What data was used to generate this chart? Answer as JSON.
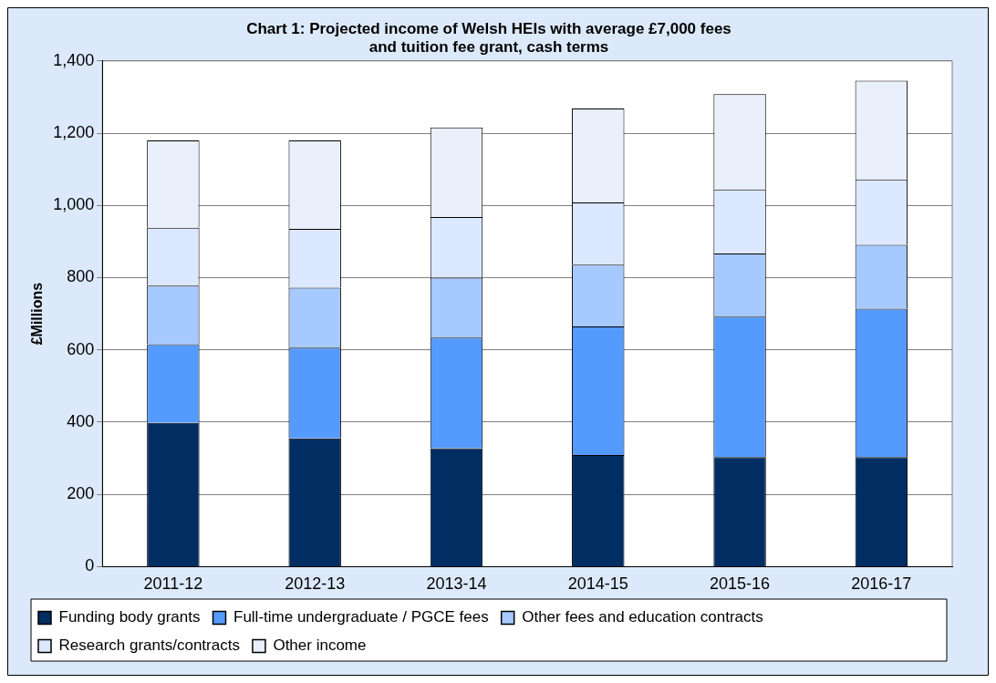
{
  "chart_data": {
    "type": "bar",
    "title": "Chart 1: Projected income of Welsh HEIs with average £7,000 fees\nand tuition fee grant, cash terms",
    "categories": [
      "2011-12",
      "2012-13",
      "2013-14",
      "2014-15",
      "2015-16",
      "2016-17"
    ],
    "stacked": true,
    "ylabel": "£Millions",
    "series": [
      {
        "name": "Funding body grants",
        "color": "#002d62",
        "values": [
          398,
          355,
          328,
          309,
          303,
          303
        ]
      },
      {
        "name": "Full-time undergraduate / PGCE fees",
        "color": "#559bff",
        "values": [
          218,
          251,
          306,
          356,
          389,
          411
        ]
      },
      {
        "name": "Other fees and education contracts",
        "color": "#a6c9ff",
        "values": [
          162,
          166,
          166,
          171,
          175,
          177
        ]
      },
      {
        "name": "Research grants/contracts",
        "color": "#dbe8ff",
        "values": [
          160,
          163,
          168,
          172,
          177,
          181
        ]
      },
      {
        "name": "Other income",
        "color": "#e9f0fb",
        "values": [
          242,
          245,
          248,
          260,
          264,
          273
        ]
      }
    ],
    "ylim": [
      0,
      1400
    ],
    "yticks": [
      0,
      200,
      400,
      600,
      800,
      {
        "value": 1000,
        "label": "1,000"
      },
      {
        "value": 1200,
        "label": "1,200"
      },
      {
        "value": 1400,
        "label": "1,400"
      }
    ],
    "grid": "y",
    "legend": "bottom"
  }
}
